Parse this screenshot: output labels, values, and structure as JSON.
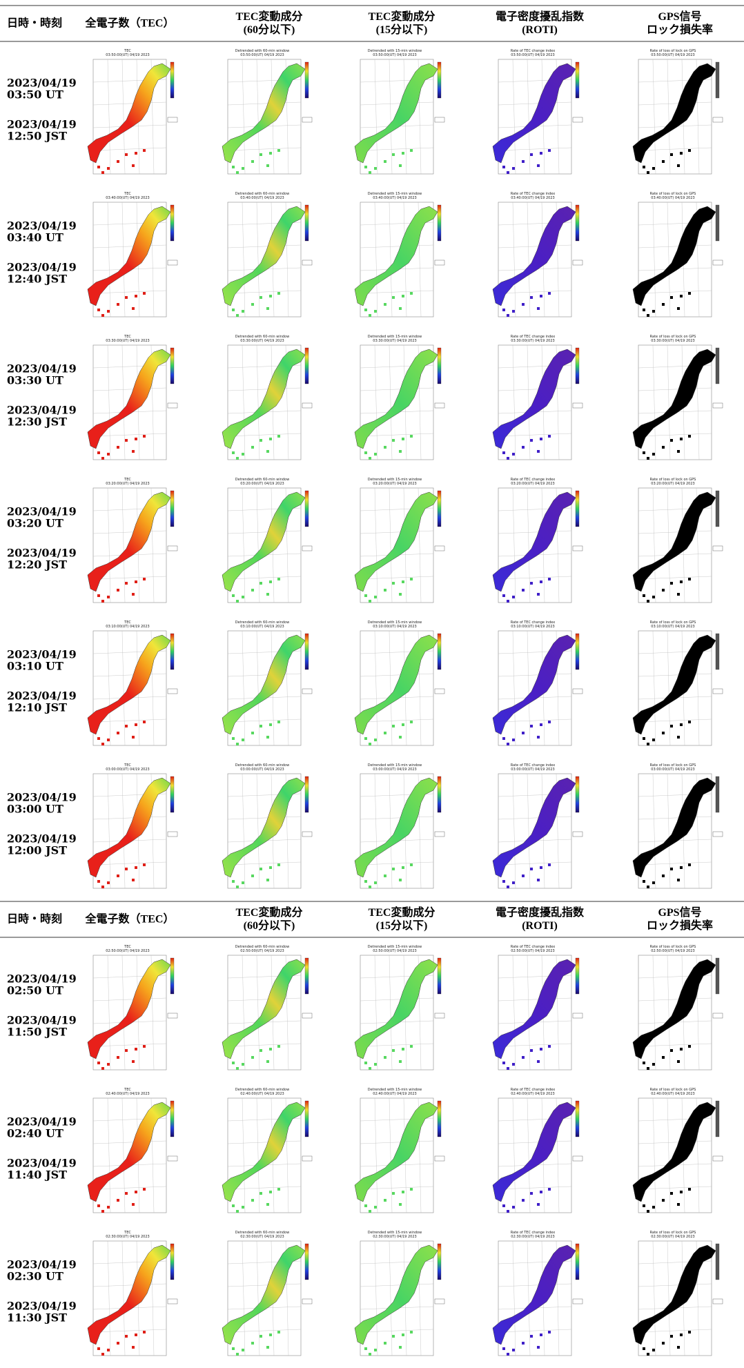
{
  "header": [
    [
      "日時・時刻"
    ],
    [
      "全電子数（TEC）"
    ],
    [
      "TEC変動成分",
      "(60分以下)"
    ],
    [
      "TEC変動成分",
      "(15分以下)"
    ],
    [
      "電子密度擾乱指数",
      "(ROTI)"
    ],
    [
      "GPS信号",
      "ロック損失率"
    ]
  ],
  "panel_titles": [
    "TEC",
    "Detrended with 60-min window",
    "Detrended with 15-min window",
    "Rate of TEC change index",
    "Rate of loss of lock on GPS"
  ],
  "rows": [
    {
      "ut_date": "2023/04/19",
      "ut_time": "03:50 UT",
      "jst_date": "2023/04/19",
      "jst_time": "12:50 JST",
      "panel_time": "03:50:00(UT) 04/19 2023"
    },
    {
      "ut_date": "2023/04/19",
      "ut_time": "03:40 UT",
      "jst_date": "2023/04/19",
      "jst_time": "12:40 JST",
      "panel_time": "03:40:00(UT) 04/19 2023"
    },
    {
      "ut_date": "2023/04/19",
      "ut_time": "03:30 UT",
      "jst_date": "2023/04/19",
      "jst_time": "12:30 JST",
      "panel_time": "03:30:00(UT) 04/19 2023"
    },
    {
      "ut_date": "2023/04/19",
      "ut_time": "03:20 UT",
      "jst_date": "2023/04/19",
      "jst_time": "12:20 JST",
      "panel_time": "03:20:00(UT) 04/19 2023"
    },
    {
      "ut_date": "2023/04/19",
      "ut_time": "03:10 UT",
      "jst_date": "2023/04/19",
      "jst_time": "12:10 JST",
      "panel_time": "03:10:00(UT) 04/19 2023"
    },
    {
      "ut_date": "2023/04/19",
      "ut_time": "03:00 UT",
      "jst_date": "2023/04/19",
      "jst_time": "12:00 JST",
      "panel_time": "03:00:00(UT) 04/19 2023"
    },
    {
      "ut_date": "2023/04/19",
      "ut_time": "02:50 UT",
      "jst_date": "2023/04/19",
      "jst_time": "11:50 JST",
      "panel_time": "02:50:00(UT) 04/19 2023"
    },
    {
      "ut_date": "2023/04/19",
      "ut_time": "02:40 UT",
      "jst_date": "2023/04/19",
      "jst_time": "11:40 JST",
      "panel_time": "02:40:00(UT) 04/19 2023"
    },
    {
      "ut_date": "2023/04/19",
      "ut_time": "02:30 UT",
      "jst_date": "2023/04/19",
      "jst_time": "11:30 JST",
      "panel_time": "02:30:00(UT) 04/19 2023"
    }
  ]
}
